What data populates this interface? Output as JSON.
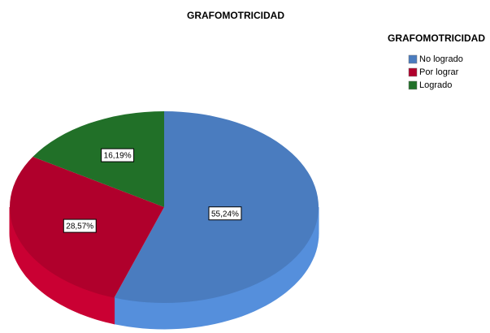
{
  "chart_data": {
    "type": "pie",
    "title": "GRAFOMOTRICIDAD",
    "legend_title": "GRAFOMOTRICIDAD",
    "categories": [
      "No logrado",
      "Por lograr",
      "Logrado"
    ],
    "values": [
      55.24,
      28.57,
      16.19
    ],
    "value_labels": [
      "55,24%",
      "28,57%",
      "16,19%"
    ],
    "colors": [
      "#4a7cbf",
      "#b0002c",
      "#217028"
    ]
  }
}
